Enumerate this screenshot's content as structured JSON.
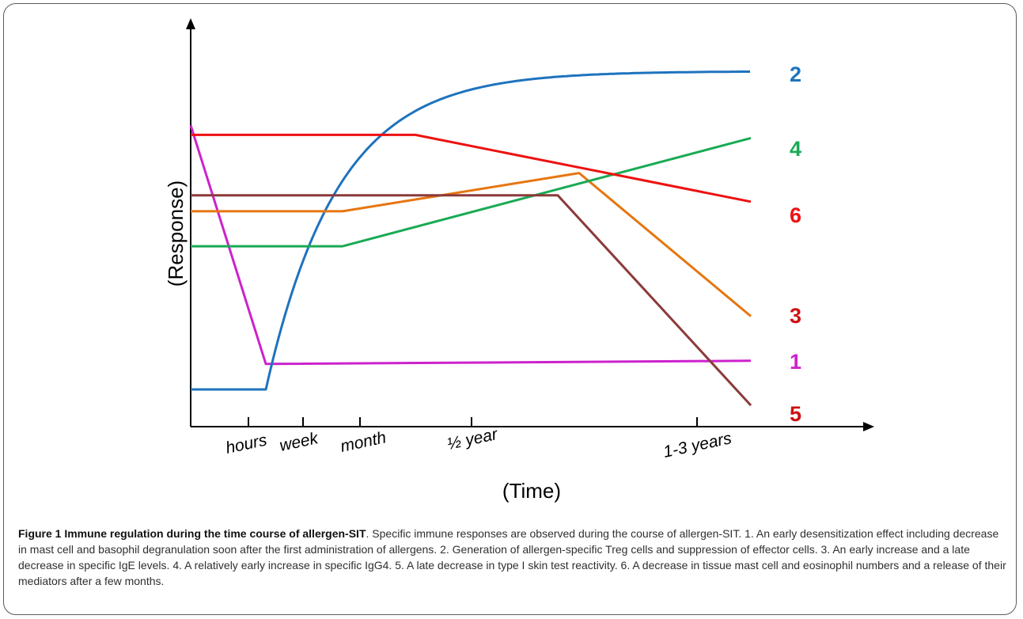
{
  "colors": {
    "series_1": "#cc22cc",
    "series_2": "#1e73be",
    "series_3": "#e6760f",
    "series_4": "#1aaa55",
    "series_5": "#8b3a3a",
    "series_6": "#ee1111",
    "axis": "#000000",
    "label_red": "#cc1111"
  },
  "chart_data": {
    "type": "line",
    "ylabel": "(Response)",
    "xlabel": "(Time)",
    "x_ticks": [
      "hours",
      "week",
      "month",
      "½ year",
      "1-3 years"
    ],
    "grid": false,
    "legend": "right-side series labels",
    "series": [
      {
        "name": "1",
        "values": [
          {
            "x": "start",
            "y": 0.83
          },
          {
            "x": "hours",
            "y": 0.08
          },
          {
            "x": "end",
            "y": 0.09
          }
        ]
      },
      {
        "name": "2",
        "values": [
          {
            "x": "start",
            "y": 0.0
          },
          {
            "x": "hours",
            "y": 0.0
          },
          {
            "x": "month",
            "y": 0.71
          },
          {
            "x": "end",
            "y": 1.0
          }
        ]
      },
      {
        "name": "3",
        "values": [
          {
            "x": "start",
            "y": 0.56
          },
          {
            "x": "month",
            "y": 0.56
          },
          {
            "x": "late",
            "y": 0.68
          },
          {
            "x": "end",
            "y": 0.23
          }
        ]
      },
      {
        "name": "4",
        "values": [
          {
            "x": "start",
            "y": 0.45
          },
          {
            "x": "month",
            "y": 0.45
          },
          {
            "x": "end",
            "y": 0.79
          }
        ]
      },
      {
        "name": "5",
        "values": [
          {
            "x": "start",
            "y": 0.61
          },
          {
            "x": "late",
            "y": 0.61
          },
          {
            "x": "end",
            "y": -0.05
          }
        ]
      },
      {
        "name": "6",
        "values": [
          {
            "x": "start",
            "y": 0.8
          },
          {
            "x": "½ year",
            "y": 0.8
          },
          {
            "x": "end",
            "y": 0.59
          }
        ]
      }
    ]
  },
  "caption": {
    "title": "Figure 1 Immune regulation during the time course of allergen-SIT",
    "body": ". Specific immune responses are observed during the course of allergen-SIT. 1. An early desensitization effect including decrease in mast cell and basophil degranulation soon after the first administration of allergens. 2. Generation of allergen-specific Treg cells and suppression of effector cells. 3. An early increase and a late decrease in specific IgE levels. 4. A relatively early increase in specific IgG4. 5. A late decrease in type I skin test reactivity. 6. A decrease in tissue mast cell and eosinophil numbers and a release of their mediators after a few months."
  }
}
